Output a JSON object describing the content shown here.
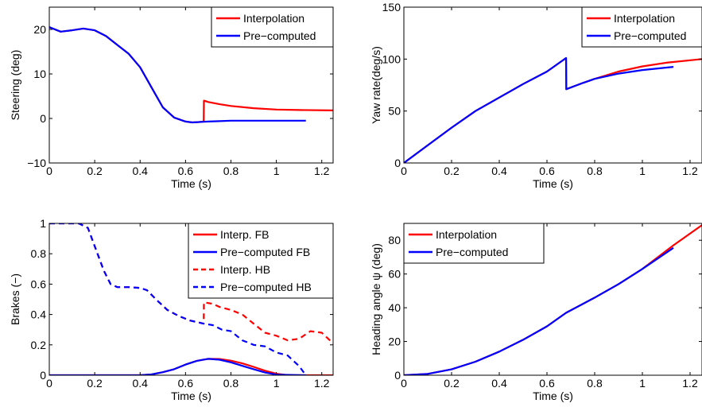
{
  "chart_data": [
    {
      "type": "line",
      "xlabel": "Time (s)",
      "ylabel": "Steering (deg)",
      "xlim": [
        0,
        1.25
      ],
      "ylim": [
        -10,
        25
      ],
      "xticks": [
        0,
        0.2,
        0.4,
        0.6,
        0.8,
        1,
        1.2
      ],
      "xtick_labels": [
        "0",
        "0.2",
        "0.4",
        "0.6",
        "0.8",
        "1",
        "1.2"
      ],
      "yticks": [
        -10,
        0,
        10,
        20
      ],
      "ytick_labels": [
        "−10",
        "0",
        "10",
        "20"
      ],
      "grid": false,
      "legend_position": "top-right",
      "series": [
        {
          "name": "Interpolation",
          "color": "#ff0000",
          "style": "solid",
          "x": [
            0,
            0.05,
            0.1,
            0.15,
            0.2,
            0.25,
            0.3,
            0.35,
            0.4,
            0.45,
            0.5,
            0.55,
            0.6,
            0.63,
            0.66,
            0.68,
            0.681,
            0.7,
            0.75,
            0.8,
            0.9,
            1.0,
            1.1,
            1.25
          ],
          "y": [
            20.5,
            19.5,
            19.8,
            20.2,
            19.8,
            18.5,
            16.5,
            14.5,
            11.5,
            7,
            2.5,
            0.2,
            -0.7,
            -0.9,
            -0.8,
            -0.7,
            4,
            3.7,
            3.2,
            2.8,
            2.3,
            2.0,
            1.9,
            1.8
          ]
        },
        {
          "name": "Pre−computed",
          "color": "#0000ff",
          "style": "solid",
          "x": [
            0,
            0.05,
            0.1,
            0.15,
            0.2,
            0.25,
            0.3,
            0.35,
            0.4,
            0.45,
            0.5,
            0.55,
            0.6,
            0.63,
            0.66,
            0.7,
            0.75,
            0.8,
            0.9,
            1.0,
            1.13
          ],
          "y": [
            20.5,
            19.5,
            19.8,
            20.2,
            19.8,
            18.5,
            16.5,
            14.5,
            11.5,
            7,
            2.5,
            0.2,
            -0.7,
            -0.9,
            -0.8,
            -0.7,
            -0.6,
            -0.5,
            -0.5,
            -0.5,
            -0.5
          ]
        }
      ]
    },
    {
      "type": "line",
      "xlabel": "Time (s)",
      "ylabel": "Yaw rate(deg/s)",
      "xlim": [
        0,
        1.25
      ],
      "ylim": [
        0,
        150
      ],
      "xticks": [
        0,
        0.2,
        0.4,
        0.6,
        0.8,
        1,
        1.2
      ],
      "xtick_labels": [
        "0",
        "0.2",
        "0.4",
        "0.6",
        "0.8",
        "1",
        "1.2"
      ],
      "yticks": [
        0,
        50,
        100,
        150
      ],
      "ytick_labels": [
        "0",
        "50",
        "100",
        "150"
      ],
      "grid": false,
      "legend_position": "top-right",
      "series": [
        {
          "name": "Interpolation",
          "color": "#ff0000",
          "style": "solid",
          "x": [
            0,
            0.1,
            0.2,
            0.3,
            0.4,
            0.5,
            0.6,
            0.68,
            0.681,
            0.75,
            0.8,
            0.9,
            1.0,
            1.1,
            1.25
          ],
          "y": [
            0,
            17,
            34,
            50,
            63,
            76,
            88,
            101,
            71,
            77,
            81,
            88,
            93,
            96.5,
            100
          ]
        },
        {
          "name": "Pre−computed",
          "color": "#0000ff",
          "style": "solid",
          "x": [
            0,
            0.1,
            0.2,
            0.3,
            0.4,
            0.5,
            0.6,
            0.68,
            0.681,
            0.75,
            0.8,
            0.9,
            1.0,
            1.13
          ],
          "y": [
            0,
            17,
            34,
            50,
            63,
            76,
            88,
            101,
            71,
            77,
            81,
            86,
            89.5,
            92.5
          ]
        }
      ]
    },
    {
      "type": "line",
      "xlabel": "Time (s)",
      "ylabel": "Brakes (−)",
      "xlim": [
        0,
        1.25
      ],
      "ylim": [
        0,
        1
      ],
      "xticks": [
        0,
        0.2,
        0.4,
        0.6,
        0.8,
        1,
        1.2
      ],
      "xtick_labels": [
        "0",
        "0.2",
        "0.4",
        "0.6",
        "0.8",
        "1",
        "1.2"
      ],
      "yticks": [
        0,
        0.2,
        0.4,
        0.6,
        0.8,
        1
      ],
      "ytick_labels": [
        "0",
        "0.2",
        "0.4",
        "0.6",
        "0.8",
        "1"
      ],
      "grid": false,
      "legend_position": "top-right",
      "series": [
        {
          "name": "Interp. FB",
          "color": "#ff0000",
          "style": "solid",
          "x": [
            0,
            0.4,
            0.45,
            0.5,
            0.55,
            0.6,
            0.65,
            0.7,
            0.75,
            0.8,
            0.85,
            0.9,
            0.95,
            1.0,
            1.05,
            1.25
          ],
          "y": [
            0,
            0,
            0.005,
            0.02,
            0.04,
            0.07,
            0.095,
            0.108,
            0.107,
            0.096,
            0.078,
            0.055,
            0.03,
            0.01,
            0,
            0
          ]
        },
        {
          "name": "Pre−computed FB",
          "color": "#0000ff",
          "style": "solid",
          "x": [
            0,
            0.4,
            0.45,
            0.5,
            0.55,
            0.6,
            0.65,
            0.7,
            0.75,
            0.8,
            0.85,
            0.9,
            0.95,
            1.0,
            1.13
          ],
          "y": [
            0,
            0,
            0.005,
            0.02,
            0.04,
            0.07,
            0.095,
            0.108,
            0.102,
            0.085,
            0.062,
            0.04,
            0.018,
            0.004,
            0
          ]
        },
        {
          "name": "Interp. HB",
          "color": "#ff0000",
          "style": "dashed",
          "x": [
            0,
            0.13,
            0.17,
            0.2,
            0.24,
            0.27,
            0.3,
            0.35,
            0.4,
            0.43,
            0.47,
            0.52,
            0.57,
            0.62,
            0.68,
            0.681,
            0.72,
            0.75,
            0.8,
            0.85,
            0.9,
            0.95,
            1.0,
            1.05,
            1.1,
            1.15,
            1.2,
            1.25
          ],
          "y": [
            1,
            1,
            0.97,
            0.85,
            0.69,
            0.6,
            0.58,
            0.58,
            0.575,
            0.56,
            0.5,
            0.43,
            0.39,
            0.36,
            0.34,
            0.48,
            0.47,
            0.45,
            0.43,
            0.4,
            0.34,
            0.28,
            0.26,
            0.23,
            0.24,
            0.29,
            0.28,
            0.21
          ]
        },
        {
          "name": "Pre−computed HB",
          "color": "#0000ff",
          "style": "dashed",
          "x": [
            0,
            0.13,
            0.17,
            0.2,
            0.24,
            0.27,
            0.3,
            0.35,
            0.4,
            0.43,
            0.47,
            0.52,
            0.57,
            0.62,
            0.68,
            0.72,
            0.76,
            0.8,
            0.85,
            0.9,
            0.95,
            1.0,
            1.05,
            1.1,
            1.13
          ],
          "y": [
            1,
            1,
            0.97,
            0.85,
            0.69,
            0.6,
            0.58,
            0.58,
            0.575,
            0.56,
            0.5,
            0.43,
            0.39,
            0.36,
            0.34,
            0.33,
            0.3,
            0.29,
            0.23,
            0.2,
            0.19,
            0.15,
            0.13,
            0.06,
            0
          ]
        }
      ]
    },
    {
      "type": "line",
      "xlabel": "Time (s)",
      "ylabel": "Heading angle ψ (deg)",
      "xlim": [
        0,
        1.25
      ],
      "ylim": [
        0,
        90
      ],
      "xticks": [
        0,
        0.2,
        0.4,
        0.6,
        0.8,
        1,
        1.2
      ],
      "xtick_labels": [
        "0",
        "0.2",
        "0.4",
        "0.6",
        "0.8",
        "1",
        "1.2"
      ],
      "yticks": [
        0,
        20,
        40,
        60,
        80
      ],
      "ytick_labels": [
        "0",
        "20",
        "40",
        "60",
        "80"
      ],
      "grid": false,
      "legend_position": "top-left",
      "series": [
        {
          "name": "Interpolation",
          "color": "#ff0000",
          "style": "solid",
          "x": [
            0,
            0.1,
            0.2,
            0.3,
            0.4,
            0.5,
            0.6,
            0.68,
            0.8,
            0.9,
            1.0,
            1.13,
            1.25
          ],
          "y": [
            0,
            0.8,
            3.5,
            8,
            14,
            21,
            29,
            37,
            46,
            54,
            63,
            77,
            89
          ]
        },
        {
          "name": "Pre−computed",
          "color": "#0000ff",
          "style": "solid",
          "x": [
            0,
            0.1,
            0.2,
            0.3,
            0.4,
            0.5,
            0.6,
            0.68,
            0.8,
            0.9,
            1.0,
            1.13
          ],
          "y": [
            0,
            0.8,
            3.5,
            8,
            14,
            21,
            29,
            37,
            46,
            54,
            63,
            75.5
          ]
        }
      ]
    }
  ]
}
